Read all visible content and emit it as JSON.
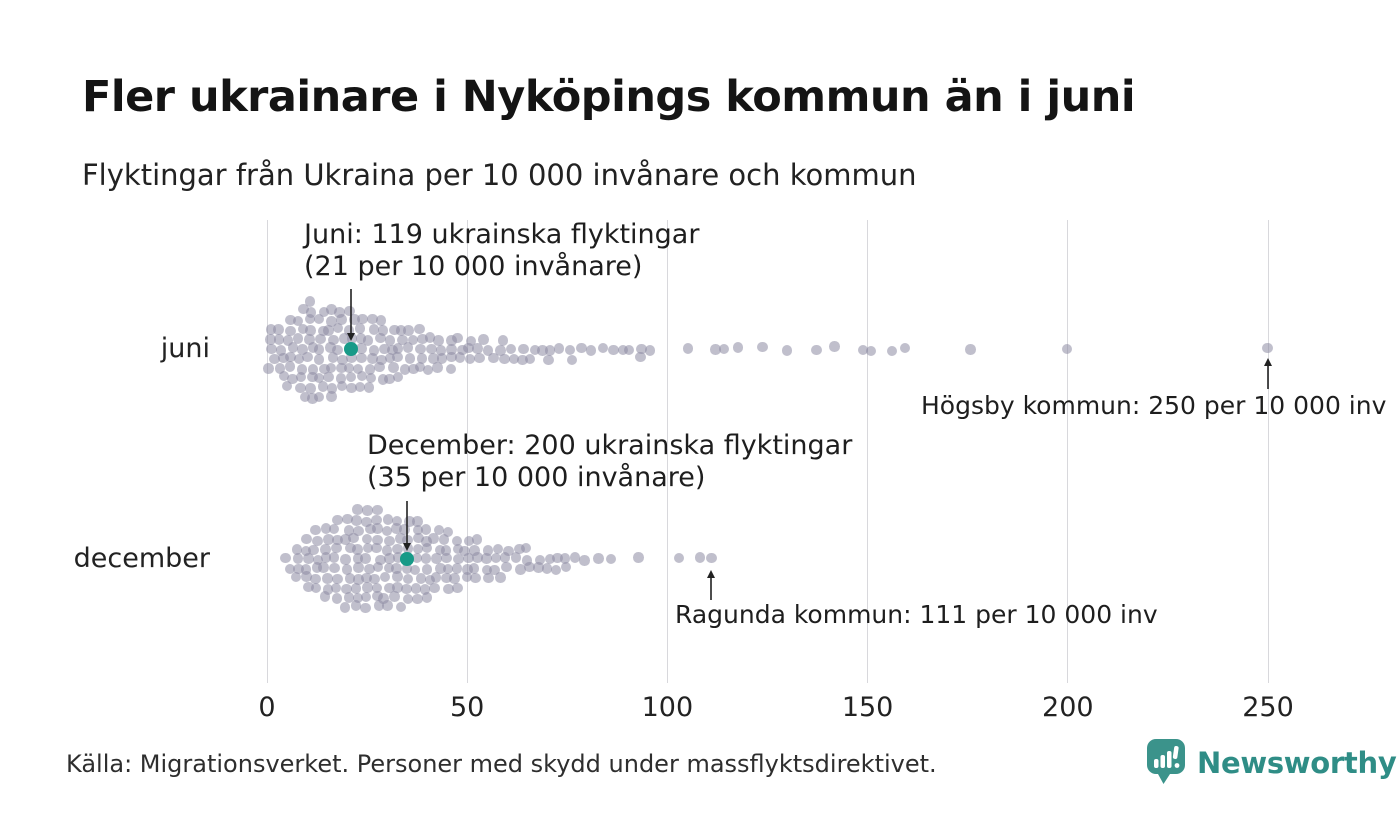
{
  "title": "Fler ukrainare i Nyköpings kommun än i juni",
  "subtitle": "Flyktingar från Ukraina per 10 000 invånare och kommun",
  "source": "Källa: Migrationsverket. Personer med skydd under massflyktsdirektivet.",
  "branding": {
    "name": "Newsworthy",
    "wordmark_color": "#2f8d86",
    "icon_color": "#3b938b"
  },
  "colors": {
    "dot": "rgba(140,138,162,0.55)",
    "dot_flat": "#c4c2cf",
    "highlight": "#189a88",
    "gridline": "#d8d8dc",
    "arrow": "#222222",
    "title_text": "#141414"
  },
  "chart_data": {
    "type": "beeswarm",
    "title": "Fler ukrainare i Nyköpings kommun än i juni",
    "subtitle": "Flyktingar från Ukraina per 10 000 invånare och kommun",
    "xlabel": "Flyktingar från Ukraina per 10 000 invånare och kommun",
    "x_ticks": [
      0,
      50,
      100,
      150,
      200,
      250
    ],
    "xlim": [
      0,
      255
    ],
    "grid": "vertical gridlines on",
    "unit": "flyktingar per 10 000 invånare",
    "rows": [
      {
        "label": "juni",
        "highlight": {
          "kommun": "Nyköpings kommun",
          "value": 21,
          "refugees": 119,
          "note_lines": [
            "Juni: 119 ukrainska flyktingar",
            "(21 per 10 000 invånare)"
          ]
        },
        "outlier_note": {
          "text": "Högsby kommun: 250 per 10 000 inv",
          "kommun": "Högsby kommun",
          "value": 250
        },
        "binned_values": [
          [
            1,
            5
          ],
          [
            3.5,
            6
          ],
          [
            6,
            8
          ],
          [
            8.5,
            10
          ],
          [
            11,
            11
          ],
          [
            13.5,
            10
          ],
          [
            16,
            10
          ],
          [
            18.5,
            9
          ],
          [
            21,
            9
          ],
          [
            23.5,
            8
          ],
          [
            26,
            8
          ],
          [
            28.5,
            7
          ],
          [
            31,
            6
          ],
          [
            33.5,
            6
          ],
          [
            36,
            5
          ],
          [
            38.5,
            5
          ],
          [
            41,
            4
          ],
          [
            43.5,
            4
          ],
          [
            46,
            4
          ],
          [
            48.5,
            3
          ],
          [
            51,
            3
          ],
          [
            53.5,
            3
          ],
          [
            56,
            2
          ],
          [
            58.5,
            3
          ],
          [
            61,
            2
          ],
          [
            63.5,
            2
          ],
          [
            66,
            2
          ],
          [
            68.5,
            1
          ],
          [
            71,
            2
          ],
          [
            73.5,
            1
          ],
          [
            76,
            2
          ],
          [
            78.5,
            1
          ],
          [
            81,
            1
          ],
          [
            83.5,
            1
          ],
          [
            86,
            1
          ],
          [
            88.5,
            1
          ],
          [
            91,
            1
          ],
          [
            93.5,
            2
          ],
          [
            96,
            1
          ]
        ],
        "outliers": [
          105,
          112,
          114,
          118,
          124,
          130,
          137,
          142,
          149,
          151,
          156,
          159,
          176,
          200,
          250
        ]
      },
      {
        "label": "december",
        "highlight": {
          "kommun": "Nyköpings kommun",
          "value": 35,
          "refugees": 200,
          "note_lines": [
            "December: 200 ukrainska flyktingar",
            "(35 per 10 000 invånare)"
          ]
        },
        "outlier_note": {
          "text": "Ragunda kommun: 111 per 10 000 inv",
          "kommun": "Ragunda kommun",
          "value": 111
        },
        "binned_values": [
          [
            5,
            2
          ],
          [
            7.5,
            4
          ],
          [
            10,
            6
          ],
          [
            12.5,
            7
          ],
          [
            15,
            8
          ],
          [
            17.5,
            9
          ],
          [
            20,
            10
          ],
          [
            22.5,
            11
          ],
          [
            25,
            11
          ],
          [
            27.5,
            11
          ],
          [
            30,
            10
          ],
          [
            32.5,
            10
          ],
          [
            35,
            9
          ],
          [
            37.5,
            9
          ],
          [
            40,
            8
          ],
          [
            42.5,
            7
          ],
          [
            45,
            7
          ],
          [
            47.5,
            6
          ],
          [
            50,
            5
          ],
          [
            52.5,
            5
          ],
          [
            55,
            4
          ],
          [
            57.5,
            4
          ],
          [
            60,
            3
          ],
          [
            62.5,
            3
          ],
          [
            65,
            3
          ],
          [
            67.5,
            2
          ],
          [
            70,
            2
          ],
          [
            72.5,
            2
          ],
          [
            75,
            2
          ],
          [
            77.5,
            1
          ],
          [
            80,
            1
          ],
          [
            82.5,
            1
          ]
        ],
        "outliers": [
          86,
          93,
          103,
          108,
          111
        ]
      }
    ]
  }
}
